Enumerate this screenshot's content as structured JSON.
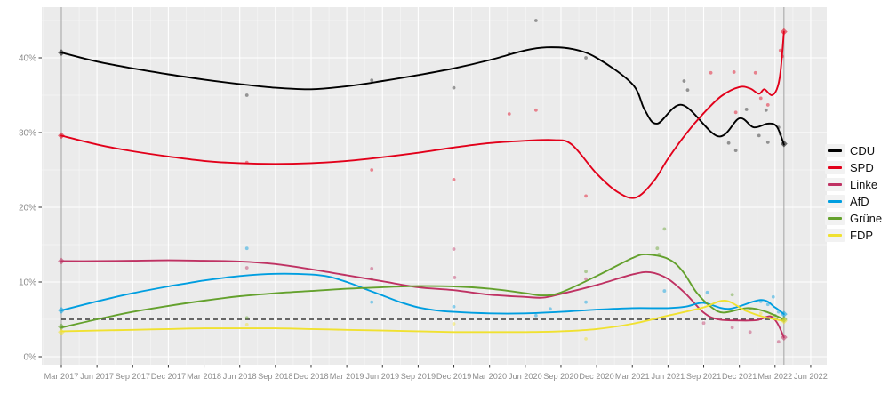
{
  "chart_data": {
    "type": "line",
    "title": "",
    "description": "Poll trend lines with individual poll dots and election result diamonds, Mar 2017 - Jun 2022",
    "x_axis": {
      "tick_labels": [
        "Mar 2017",
        "Jun 2017",
        "Sep 2017",
        "Dec 2017",
        "Mar 2018",
        "Jun 2018",
        "Sep 2018",
        "Dec 2018",
        "Mar 2019",
        "Jun 2019",
        "Sep 2019",
        "Dec 2019",
        "Mar 2020",
        "Jun 2020",
        "Sep 2020",
        "Dec 2020",
        "Mar 2021",
        "Jun 2021",
        "Sep 2021",
        "Dec 2021",
        "Mar 2022",
        "Jun 2022"
      ],
      "unit": "quarters since Mar 2017"
    },
    "y_axis": {
      "tick_labels": [
        "0%",
        "10%",
        "20%",
        "30%",
        "40%"
      ],
      "tick_values": [
        0,
        10,
        20,
        30,
        40
      ],
      "range": [
        0,
        46
      ]
    },
    "reference_line": {
      "value": 5,
      "style": "dashed",
      "color": "#3a3a3a"
    },
    "election_vlines_q": [
      0,
      20.25
    ],
    "legend_position": "right",
    "grid": {
      "major_color": "#ffffff",
      "minor_color": "#ffffff",
      "panel_bg": "#ebebeb"
    },
    "series": [
      {
        "name": "CDU",
        "color": "#000000",
        "trend": [
          [
            0,
            40.7
          ],
          [
            1,
            39.5
          ],
          [
            2,
            38.6
          ],
          [
            3,
            37.8
          ],
          [
            4,
            37.1
          ],
          [
            5,
            36.5
          ],
          [
            6,
            36.0
          ],
          [
            7,
            35.8
          ],
          [
            8,
            36.2
          ],
          [
            9,
            36.9
          ],
          [
            10,
            37.7
          ],
          [
            11,
            38.6
          ],
          [
            12,
            39.7
          ],
          [
            13,
            41.0
          ],
          [
            13.6,
            41.4
          ],
          [
            14.3,
            41.2
          ],
          [
            15,
            40.0
          ],
          [
            16,
            36.5
          ],
          [
            16.35,
            33.0
          ],
          [
            16.7,
            31.2
          ],
          [
            17.4,
            33.7
          ],
          [
            18.4,
            29.5
          ],
          [
            19.0,
            31.9
          ],
          [
            19.4,
            30.7
          ],
          [
            19.8,
            31.2
          ],
          [
            20.05,
            30.8
          ],
          [
            20.25,
            28.4
          ]
        ],
        "polls": [
          [
            5.2,
            35
          ],
          [
            8.7,
            37
          ],
          [
            11,
            36
          ],
          [
            12.55,
            40.5
          ],
          [
            13.3,
            45
          ],
          [
            14.7,
            40
          ],
          [
            17.45,
            36.9
          ],
          [
            17.55,
            35.7
          ],
          [
            18.7,
            28.6
          ],
          [
            18.9,
            27.6
          ],
          [
            19.2,
            33.1
          ],
          [
            19.55,
            29.6
          ],
          [
            19.75,
            33.0
          ],
          [
            19.8,
            28.7
          ],
          [
            20.1,
            30.7
          ],
          [
            20.15,
            29.8
          ]
        ],
        "elections": [
          [
            0,
            40.7
          ],
          [
            20.25,
            28.5
          ]
        ]
      },
      {
        "name": "SPD",
        "color": "#e2001a",
        "trend": [
          [
            0,
            29.6
          ],
          [
            1,
            28.4
          ],
          [
            2,
            27.5
          ],
          [
            3,
            26.8
          ],
          [
            4,
            26.2
          ],
          [
            5,
            25.9
          ],
          [
            6,
            25.8
          ],
          [
            7,
            25.9
          ],
          [
            8,
            26.2
          ],
          [
            9,
            26.7
          ],
          [
            10,
            27.3
          ],
          [
            11,
            28.0
          ],
          [
            12,
            28.6
          ],
          [
            13,
            28.9
          ],
          [
            13.8,
            29.0
          ],
          [
            14.3,
            28.4
          ],
          [
            15,
            24.5
          ],
          [
            15.6,
            22.0
          ],
          [
            16.1,
            21.3
          ],
          [
            16.6,
            23.5
          ],
          [
            17.0,
            26.5
          ],
          [
            17.5,
            29.8
          ],
          [
            18.0,
            32.6
          ],
          [
            18.5,
            34.9
          ],
          [
            19.0,
            36.1
          ],
          [
            19.3,
            35.9
          ],
          [
            19.55,
            35.2
          ],
          [
            19.7,
            35.8
          ],
          [
            19.9,
            35.0
          ],
          [
            20.05,
            35.8
          ],
          [
            20.15,
            38.0
          ],
          [
            20.25,
            43.5
          ]
        ],
        "polls": [
          [
            5.2,
            26
          ],
          [
            8.7,
            25
          ],
          [
            11,
            23.7
          ],
          [
            12.55,
            32.5
          ],
          [
            13.3,
            33
          ],
          [
            14.7,
            21.5
          ],
          [
            18.2,
            38
          ],
          [
            18.85,
            38.1
          ],
          [
            18.9,
            32.7
          ],
          [
            19.45,
            38
          ],
          [
            19.6,
            34.6
          ],
          [
            19.8,
            33.7
          ],
          [
            20.15,
            41
          ],
          [
            20.2,
            40.2
          ]
        ],
        "elections": [
          [
            0,
            29.6
          ],
          [
            20.25,
            43.5
          ]
        ]
      },
      {
        "name": "Linke",
        "color": "#bf3263",
        "trend": [
          [
            0,
            12.8
          ],
          [
            1,
            12.8
          ],
          [
            2,
            12.85
          ],
          [
            3,
            12.9
          ],
          [
            4,
            12.85
          ],
          [
            5,
            12.75
          ],
          [
            6,
            12.4
          ],
          [
            7,
            11.7
          ],
          [
            8,
            10.9
          ],
          [
            9,
            10.1
          ],
          [
            10,
            9.3
          ],
          [
            11,
            8.9
          ],
          [
            12,
            8.3
          ],
          [
            13,
            8.0
          ],
          [
            13.5,
            7.9
          ],
          [
            14,
            8.4
          ],
          [
            15,
            9.6
          ],
          [
            16,
            11.0
          ],
          [
            16.5,
            11.3
          ],
          [
            17,
            10.4
          ],
          [
            17.5,
            8.4
          ],
          [
            18,
            5.9
          ],
          [
            18.4,
            5.0
          ],
          [
            19,
            4.85
          ],
          [
            19.5,
            4.9
          ],
          [
            19.85,
            5.4
          ],
          [
            20.05,
            4.6
          ],
          [
            20.25,
            2.6
          ]
        ],
        "polls": [
          [
            5.2,
            11.9
          ],
          [
            8.7,
            11.8
          ],
          [
            11,
            14.4
          ],
          [
            11.02,
            10.6
          ],
          [
            14.7,
            10.4
          ],
          [
            18.0,
            4.5
          ],
          [
            18.8,
            3.9
          ],
          [
            19.3,
            3.3
          ],
          [
            20.1,
            2.0
          ]
        ],
        "elections": [
          [
            0,
            12.8
          ],
          [
            20.25,
            2.6
          ]
        ]
      },
      {
        "name": "AfD",
        "color": "#009ee0",
        "trend": [
          [
            0,
            6.2
          ],
          [
            1,
            7.4
          ],
          [
            2,
            8.5
          ],
          [
            3,
            9.4
          ],
          [
            4,
            10.2
          ],
          [
            5,
            10.8
          ],
          [
            6,
            11.1
          ],
          [
            7,
            11.0
          ],
          [
            7.5,
            10.7
          ],
          [
            8,
            10.0
          ],
          [
            8.5,
            9.1
          ],
          [
            9,
            8.2
          ],
          [
            9.5,
            7.3
          ],
          [
            10,
            6.6
          ],
          [
            10.5,
            6.2
          ],
          [
            11,
            6.0
          ],
          [
            12,
            5.8
          ],
          [
            13,
            5.8
          ],
          [
            14,
            6.0
          ],
          [
            15,
            6.3
          ],
          [
            16,
            6.5
          ],
          [
            17,
            6.5
          ],
          [
            17.5,
            6.7
          ],
          [
            18,
            7.2
          ],
          [
            18.7,
            6.4
          ],
          [
            19.6,
            7.6
          ],
          [
            20.0,
            6.6
          ],
          [
            20.25,
            5.7
          ]
        ],
        "polls": [
          [
            5.2,
            14.5
          ],
          [
            8.7,
            7.3
          ],
          [
            11,
            6.7
          ],
          [
            13.3,
            5.5
          ],
          [
            13.7,
            6.4
          ],
          [
            14.7,
            7.3
          ],
          [
            16.9,
            8.8
          ],
          [
            18.1,
            8.6
          ],
          [
            19.6,
            7.4
          ],
          [
            19.8,
            7.0
          ],
          [
            19.95,
            8.0
          ],
          [
            20.1,
            6.0
          ]
        ],
        "elections": [
          [
            0,
            6.2
          ],
          [
            20.25,
            5.7
          ]
        ]
      },
      {
        "name": "Grüne",
        "color": "#64a12d",
        "trend": [
          [
            0,
            3.9
          ],
          [
            1,
            5.0
          ],
          [
            2,
            6.0
          ],
          [
            3,
            6.8
          ],
          [
            4,
            7.5
          ],
          [
            5,
            8.1
          ],
          [
            6,
            8.5
          ],
          [
            7,
            8.8
          ],
          [
            8,
            9.1
          ],
          [
            9,
            9.3
          ],
          [
            10,
            9.45
          ],
          [
            11,
            9.4
          ],
          [
            12,
            9.1
          ],
          [
            13,
            8.5
          ],
          [
            13.5,
            8.2
          ],
          [
            14,
            8.6
          ],
          [
            15,
            10.8
          ],
          [
            16,
            13.2
          ],
          [
            16.4,
            13.7
          ],
          [
            17,
            13.1
          ],
          [
            17.4,
            11.5
          ],
          [
            17.8,
            8.6
          ],
          [
            18.2,
            6.7
          ],
          [
            18.55,
            5.9
          ],
          [
            19.2,
            6.5
          ],
          [
            19.7,
            6.1
          ],
          [
            20.25,
            5.0
          ]
        ],
        "polls": [
          [
            5.2,
            5.2
          ],
          [
            8.7,
            10.4
          ],
          [
            14.7,
            11.4
          ],
          [
            16.7,
            14.5
          ],
          [
            16.75,
            13.7
          ],
          [
            16.9,
            17.1
          ],
          [
            18.8,
            8.3
          ],
          [
            19.3,
            6.4
          ],
          [
            20.0,
            5.5
          ]
        ],
        "elections": [
          [
            0,
            4.0
          ],
          [
            20.25,
            5.0
          ]
        ]
      },
      {
        "name": "FDP",
        "color": "#f0e130",
        "trend": [
          [
            0,
            3.4
          ],
          [
            1,
            3.5
          ],
          [
            2,
            3.6
          ],
          [
            3,
            3.7
          ],
          [
            4,
            3.8
          ],
          [
            5,
            3.8
          ],
          [
            6,
            3.8
          ],
          [
            7,
            3.7
          ],
          [
            8,
            3.6
          ],
          [
            9,
            3.5
          ],
          [
            10,
            3.4
          ],
          [
            11,
            3.3
          ],
          [
            12,
            3.3
          ],
          [
            13,
            3.3
          ],
          [
            14,
            3.4
          ],
          [
            15,
            3.7
          ],
          [
            16,
            4.4
          ],
          [
            17,
            5.5
          ],
          [
            17.2,
            5.7
          ],
          [
            18.0,
            6.6
          ],
          [
            18.6,
            7.5
          ],
          [
            19.2,
            6.1
          ],
          [
            19.7,
            5.3
          ],
          [
            20.25,
            4.8
          ]
        ],
        "polls": [
          [
            5.2,
            4.3
          ],
          [
            11,
            4.4
          ],
          [
            14.7,
            2.4
          ],
          [
            19.6,
            5.8
          ],
          [
            19.9,
            5.5
          ]
        ],
        "elections": [
          [
            0,
            3.3
          ],
          [
            20.25,
            4.8
          ]
        ]
      }
    ]
  },
  "styles": {
    "axis_text_color": "#8c8c8c",
    "tick_mark_color": "#333333",
    "election_vline_color": "#a8a8a8"
  }
}
